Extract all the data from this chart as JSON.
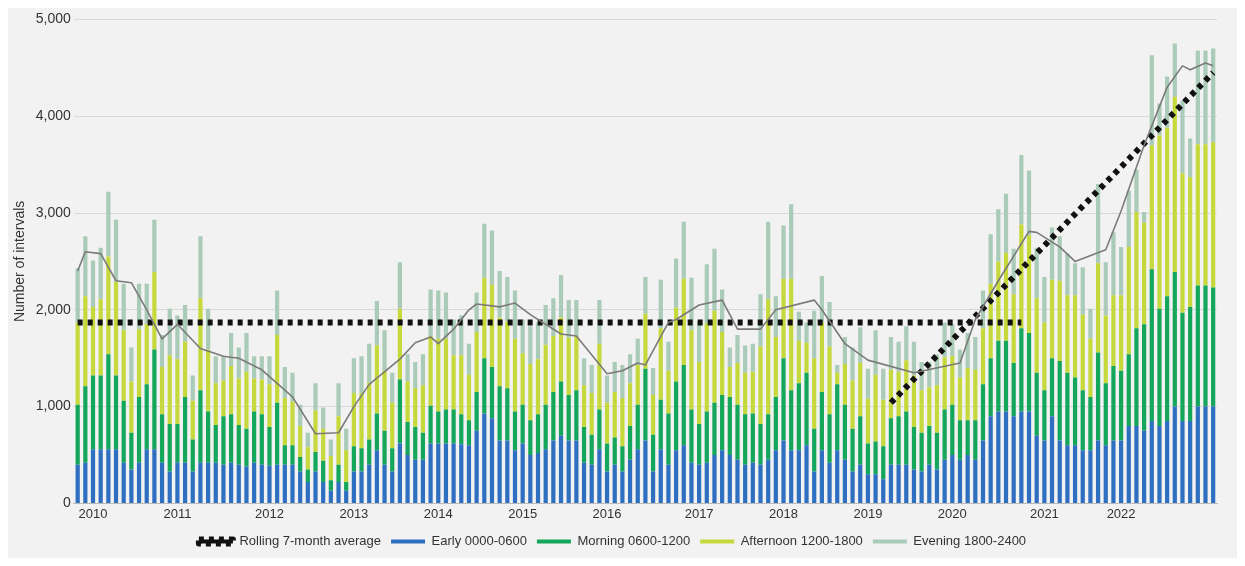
{
  "chart_data": {
    "type": "bar",
    "stacked": true,
    "ylabel": "Number of intervals",
    "categories": [
      null,
      null,
      "2010",
      null,
      null,
      null,
      null,
      null,
      null,
      null,
      null,
      null,
      null,
      "2011",
      null,
      null,
      null,
      null,
      null,
      null,
      null,
      null,
      null,
      null,
      null,
      "2012",
      null,
      null,
      null,
      null,
      null,
      null,
      null,
      null,
      null,
      null,
      "2013",
      null,
      null,
      null,
      null,
      null,
      null,
      null,
      null,
      null,
      null,
      "2014",
      null,
      null,
      null,
      null,
      null,
      null,
      null,
      null,
      null,
      null,
      "2015",
      null,
      null,
      null,
      null,
      null,
      null,
      null,
      null,
      null,
      null,
      "2016",
      null,
      null,
      null,
      null,
      null,
      null,
      null,
      null,
      null,
      null,
      null,
      "2017",
      null,
      null,
      null,
      null,
      null,
      null,
      null,
      null,
      null,
      null,
      "2018",
      null,
      null,
      null,
      null,
      null,
      null,
      null,
      null,
      null,
      null,
      "2019",
      null,
      null,
      null,
      null,
      null,
      null,
      null,
      null,
      null,
      null,
      "2020",
      null,
      null,
      null,
      null,
      null,
      null,
      null,
      null,
      null,
      null,
      null,
      "2021",
      null,
      null,
      null,
      null,
      null,
      null,
      null,
      null,
      null,
      "2022",
      null,
      null,
      null,
      null,
      null,
      null,
      null,
      null,
      null,
      null,
      null,
      null
    ],
    "ylim": [
      0,
      5000
    ],
    "yticks": [
      0,
      {
        "value": 1000,
        "label": "1,000"
      },
      {
        "value": 2000,
        "label": "2,000"
      },
      {
        "value": 3000,
        "label": "3,000"
      },
      {
        "value": 4000,
        "label": "4,000"
      },
      {
        "value": 5000,
        "label": "5,000"
      }
    ],
    "grid": "y",
    "legend": "bottom",
    "series": [
      {
        "name": "Early 0000-0600",
        "color": "#2f6fc0",
        "values": [
          400,
          420,
          560,
          560,
          560,
          560,
          420,
          350,
          420,
          560,
          560,
          420,
          330,
          420,
          420,
          330,
          420,
          420,
          420,
          400,
          420,
          400,
          380,
          420,
          400,
          390,
          400,
          400,
          400,
          330,
          220,
          330,
          220,
          130,
          220,
          130,
          330,
          330,
          400,
          550,
          400,
          330,
          620,
          500,
          450,
          450,
          620,
          620,
          620,
          620,
          610,
          600,
          750,
          930,
          880,
          650,
          650,
          550,
          620,
          500,
          520,
          560,
          650,
          700,
          650,
          650,
          420,
          400,
          560,
          330,
          400,
          330,
          450,
          560,
          650,
          330,
          560,
          400,
          550,
          600,
          420,
          400,
          420,
          500,
          550,
          500,
          450,
          400,
          420,
          400,
          450,
          550,
          650,
          550,
          550,
          600,
          330,
          550,
          420,
          550,
          450,
          330,
          400,
          300,
          300,
          250,
          400,
          400,
          400,
          350,
          330,
          400,
          350,
          450,
          500,
          450,
          500,
          450,
          650,
          900,
          950,
          950,
          900,
          950,
          950,
          700,
          650,
          900,
          650,
          600,
          600,
          550,
          550,
          650,
          600,
          650,
          650,
          800,
          800,
          750,
          850,
          800,
          850,
          1000,
          850,
          850,
          1000,
          1000,
          1000
        ]
      },
      {
        "name": "Morning 0600-1200",
        "color": "#14a65a",
        "values": [
          620,
          790,
          760,
          760,
          980,
          760,
          640,
          380,
          680,
          670,
          1030,
          500,
          490,
          400,
          680,
          330,
          750,
          530,
          390,
          500,
          500,
          410,
          390,
          530,
          520,
          400,
          640,
          200,
          200,
          150,
          130,
          200,
          220,
          110,
          180,
          90,
          260,
          240,
          260,
          380,
          350,
          240,
          660,
          340,
          340,
          280,
          390,
          330,
          350,
          350,
          310,
          260,
          400,
          570,
          530,
          560,
          540,
          400,
          400,
          360,
          400,
          460,
          500,
          560,
          470,
          520,
          370,
          310,
          410,
          290,
          280,
          260,
          350,
          460,
          740,
          380,
          510,
          530,
          710,
          830,
          550,
          420,
          530,
          540,
          570,
          600,
          570,
          520,
          510,
          420,
          470,
          550,
          850,
          620,
          690,
          750,
          440,
          600,
          500,
          680,
          570,
          440,
          500,
          320,
          340,
          340,
          480,
          500,
          550,
          440,
          400,
          400,
          380,
          520,
          520,
          410,
          360,
          410,
          580,
          600,
          730,
          730,
          550,
          860,
          810,
          650,
          520,
          600,
          820,
          750,
          700,
          620,
          550,
          910,
          640,
          770,
          720,
          740,
          1010,
          1100,
          1570,
          1210,
          1290,
          1390,
          1120,
          1180,
          1250,
          1250,
          1230
        ]
      },
      {
        "name": "Afternoon 1200-1800",
        "color": "#c6d93c",
        "values": [
          850,
          930,
          710,
          790,
          1010,
          970,
          730,
          530,
          700,
          620,
          800,
          490,
          710,
          670,
          570,
          400,
          950,
          640,
          430,
          370,
          500,
          480,
          590,
          340,
          360,
          440,
          700,
          490,
          450,
          320,
          230,
          430,
          330,
          250,
          500,
          330,
          550,
          570,
          590,
          700,
          620,
          470,
          730,
          420,
          400,
          490,
          720,
          750,
          730,
          560,
          610,
          470,
          620,
          830,
          850,
          710,
          690,
          750,
          530,
          580,
          570,
          620,
          580,
          660,
          590,
          560,
          430,
          430,
          680,
          420,
          470,
          500,
          440,
          410,
          570,
          410,
          740,
          440,
          760,
          890,
          820,
          640,
          910,
          950,
          650,
          310,
          430,
          430,
          430,
          800,
          1190,
          620,
          820,
          1150,
          440,
          310,
          730,
          720,
          700,
          120,
          420,
          500,
          550,
          460,
          690,
          480,
          500,
          460,
          530,
          530,
          440,
          400,
          490,
          540,
          500,
          440,
          540,
          520,
          580,
          770,
          820,
          910,
          710,
          1070,
          1010,
          770,
          700,
          810,
          830,
          800,
          850,
          780,
          600,
          920,
          700,
          730,
          780,
          1110,
          1200,
          1050,
          1280,
          1790,
          1740,
          1810,
          1440,
          1340,
          1460,
          1460,
          1500
        ]
      },
      {
        "name": "Evening 1800-2400",
        "color": "#a9cbb8",
        "values": [
          560,
          620,
          480,
          530,
          670,
          640,
          480,
          350,
          470,
          420,
          540,
          330,
          480,
          450,
          380,
          260,
          640,
          420,
          280,
          250,
          340,
          320,
          400,
          230,
          240,
          290,
          460,
          320,
          300,
          220,
          150,
          280,
          220,
          170,
          340,
          220,
          360,
          380,
          400,
          460,
          420,
          310,
          480,
          280,
          270,
          320,
          480,
          500,
          480,
          370,
          410,
          320,
          410,
          560,
          560,
          480,
          460,
          500,
          350,
          390,
          380,
          410,
          390,
          440,
          390,
          370,
          280,
          290,
          450,
          280,
          310,
          340,
          300,
          270,
          380,
          280,
          500,
          300,
          510,
          590,
          540,
          420,
          610,
          640,
          440,
          200,
          290,
          280,
          290,
          540,
          800,
          420,
          550,
          770,
          300,
          210,
          490,
          480,
          460,
          80,
          280,
          340,
          370,
          310,
          460,
          320,
          340,
          310,
          350,
          350,
          290,
          260,
          320,
          360,
          330,
          290,
          360,
          340,
          390,
          510,
          540,
          610,
          470,
          720,
          670,
          520,
          470,
          540,
          460,
          430,
          330,
          490,
          310,
          820,
          550,
          650,
          500,
          580,
          440,
          110,
          930,
          330,
          530,
          550,
          750,
          400,
          970,
          970,
          970
        ]
      },
      {
        "type": "line",
        "color": "#7a7a7a",
        "line_style": "solid",
        "values": [
          2400,
          2600,
          null,
          2580,
          null,
          2300,
          null,
          2280,
          null,
          2000,
          null,
          1700,
          null,
          1850,
          null,
          null,
          1600,
          null,
          null,
          1520,
          null,
          1500,
          null,
          null,
          1380,
          null,
          null,
          null,
          1100,
          null,
          null,
          720,
          null,
          null,
          730,
          null,
          1000,
          null,
          1230,
          null,
          null,
          null,
          1490,
          null,
          1660,
          null,
          1720,
          1650,
          null,
          1800,
          null,
          2000,
          2060,
          null,
          null,
          2030,
          null,
          2070,
          null,
          1950,
          null,
          null,
          null,
          1750,
          null,
          1730,
          null,
          null,
          null,
          1340,
          null,
          1370,
          null,
          1450,
          1430,
          null,
          null,
          1870,
          1900,
          null,
          null,
          2050,
          null,
          null,
          2100,
          1950,
          1800,
          null,
          null,
          1800,
          null,
          2000,
          null,
          null,
          null,
          null,
          2100,
          2000,
          null,
          null,
          1650,
          null,
          null,
          1480,
          null,
          null,
          null,
          null,
          null,
          1350,
          null,
          null,
          null,
          null,
          null,
          1450,
          null,
          1900,
          null,
          null,
          2300,
          null,
          null,
          null,
          2810,
          2800,
          null,
          null,
          2650,
          null,
          2500,
          null,
          null,
          null,
          2620,
          null,
          3020,
          null,
          null,
          3700,
          null,
          null,
          4300,
          null,
          4520,
          4480,
          null,
          4550,
          4520
        ]
      },
      {
        "type": "line",
        "name": "Rolling 7-month average",
        "color": "#111111",
        "line_style": "dotted",
        "values": [
          1870,
          null,
          null,
          null,
          null,
          null,
          null,
          null,
          null,
          null,
          null,
          null,
          null,
          null,
          null,
          null,
          null,
          null,
          null,
          null,
          null,
          null,
          null,
          null,
          null,
          null,
          null,
          null,
          null,
          null,
          null,
          null,
          null,
          null,
          null,
          null,
          null,
          null,
          null,
          null,
          null,
          null,
          null,
          null,
          null,
          null,
          null,
          null,
          null,
          null,
          null,
          null,
          null,
          null,
          null,
          null,
          null,
          null,
          null,
          null,
          null,
          null,
          null,
          null,
          null,
          null,
          null,
          null,
          null,
          null,
          null,
          null,
          null,
          null,
          null,
          null,
          null,
          null,
          null,
          null,
          null,
          null,
          null,
          null,
          null,
          null,
          null,
          null,
          null,
          null,
          null,
          null,
          null,
          null,
          null,
          null,
          null,
          null,
          null,
          null,
          null,
          null,
          null,
          null,
          null,
          null,
          null,
          null,
          null,
          null,
          null,
          null,
          null,
          null,
          null,
          null,
          null,
          null,
          null,
          null,
          null,
          null,
          null,
          1870,
          null,
          null,
          null,
          null,
          null,
          null,
          null,
          null,
          null,
          null,
          null,
          null,
          null,
          null,
          null,
          null,
          null,
          null,
          null,
          null,
          null,
          null,
          null,
          null,
          null
        ]
      },
      {
        "type": "line",
        "color": "#111111",
        "line_style": "dotted",
        "values": [
          null,
          null,
          null,
          null,
          null,
          null,
          null,
          null,
          null,
          null,
          null,
          null,
          null,
          null,
          null,
          null,
          null,
          null,
          null,
          null,
          null,
          null,
          null,
          null,
          null,
          null,
          null,
          null,
          null,
          null,
          null,
          null,
          null,
          null,
          null,
          null,
          null,
          null,
          null,
          null,
          null,
          null,
          null,
          null,
          null,
          null,
          null,
          null,
          null,
          null,
          null,
          null,
          null,
          null,
          null,
          null,
          null,
          null,
          null,
          null,
          null,
          null,
          null,
          null,
          null,
          null,
          null,
          null,
          null,
          null,
          null,
          null,
          null,
          null,
          null,
          null,
          null,
          null,
          null,
          null,
          null,
          null,
          null,
          null,
          null,
          null,
          null,
          null,
          null,
          null,
          null,
          null,
          null,
          null,
          null,
          null,
          null,
          null,
          null,
          null,
          null,
          null,
          null,
          null,
          null,
          null,
          1040,
          null,
          null,
          null,
          null,
          null,
          null,
          null,
          null,
          null,
          null,
          null,
          null,
          null,
          null,
          null,
          null,
          null,
          null,
          null,
          null,
          null,
          null,
          null,
          null,
          null,
          null,
          null,
          null,
          null,
          null,
          null,
          null,
          null,
          null,
          null,
          null,
          null,
          null,
          null,
          null,
          null,
          4450
        ]
      }
    ]
  }
}
